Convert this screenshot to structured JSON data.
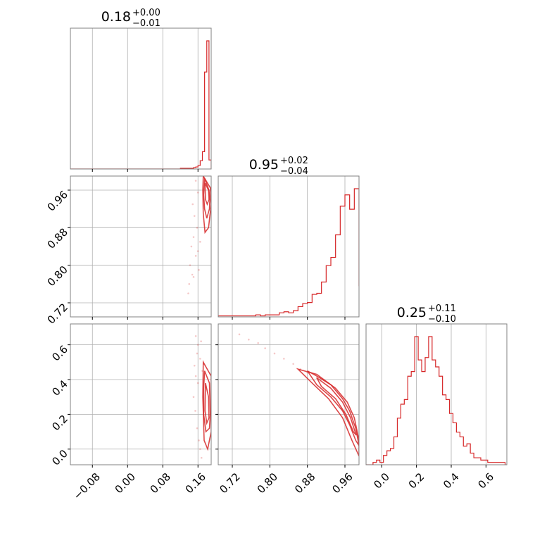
{
  "figure": {
    "background": "#ffffff",
    "line_color": "#d62728",
    "grid_color": "#b0b0b0",
    "frame_color": "#808080"
  },
  "chart_data": [
    {
      "type": "histogram",
      "panel": "diag-0",
      "title_value": "0.18",
      "title_plus": "+0.00",
      "title_minus": "−0.01",
      "xlim": [
        -0.13,
        0.19
      ],
      "x_ticks": [
        -0.08,
        0.0,
        0.08,
        0.16
      ],
      "x_tick_labels": [],
      "bins": [
        0.12,
        0.125,
        0.13,
        0.135,
        0.14,
        0.145,
        0.15,
        0.155,
        0.16,
        0.165,
        0.17,
        0.175,
        0.18,
        0.185,
        0.19
      ],
      "counts": [
        1,
        1,
        1,
        1,
        1,
        1,
        2,
        3,
        5,
        12,
        25,
        140,
        185,
        13
      ]
    },
    {
      "type": "scatter-contour",
      "panel": "q-1-0",
      "xlim": [
        -0.13,
        0.19
      ],
      "ylim": [
        0.69,
        0.99
      ],
      "x_ticks": [
        -0.08,
        0.0,
        0.08,
        0.16
      ],
      "y_ticks": [
        0.72,
        0.8,
        0.88,
        0.96
      ],
      "y_tick_labels": [
        "0.72",
        "0.80",
        "0.88",
        "0.96"
      ],
      "points": [
        [
          0.155,
          0.98
        ],
        [
          0.16,
          0.955
        ],
        [
          0.148,
          0.93
        ],
        [
          0.152,
          0.905
        ],
        [
          0.158,
          0.88
        ],
        [
          0.15,
          0.86
        ],
        [
          0.145,
          0.84
        ],
        [
          0.155,
          0.82
        ],
        [
          0.142,
          0.8
        ],
        [
          0.147,
          0.78
        ],
        [
          0.14,
          0.76
        ],
        [
          0.138,
          0.74
        ],
        [
          0.16,
          0.83
        ],
        [
          0.162,
          0.79
        ],
        [
          0.15,
          0.775
        ],
        [
          0.165,
          0.85
        ]
      ],
      "contours": [
        [
          [
            0.175,
            0.985
          ],
          [
            0.185,
            0.96
          ],
          [
            0.187,
            0.94
          ],
          [
            0.186,
            0.92
          ],
          [
            0.18,
            0.9
          ],
          [
            0.175,
            0.92
          ],
          [
            0.173,
            0.95
          ],
          [
            0.175,
            0.985
          ]
        ],
        [
          [
            0.176,
            0.975
          ],
          [
            0.184,
            0.96
          ],
          [
            0.185,
            0.94
          ],
          [
            0.181,
            0.93
          ],
          [
            0.177,
            0.94
          ],
          [
            0.176,
            0.975
          ]
        ],
        [
          [
            0.172,
            0.99
          ],
          [
            0.188,
            0.965
          ],
          [
            0.19,
            0.93
          ],
          [
            0.184,
            0.88
          ],
          [
            0.176,
            0.87
          ],
          [
            0.172,
            0.91
          ],
          [
            0.171,
            0.96
          ],
          [
            0.172,
            0.99
          ]
        ]
      ]
    },
    {
      "type": "scatter-contour",
      "panel": "q-2-0",
      "xlim": [
        -0.13,
        0.19
      ],
      "ylim": [
        -0.09,
        0.72
      ],
      "x_ticks": [
        -0.08,
        0.0,
        0.08,
        0.16
      ],
      "x_tick_labels": [
        "−0.08",
        "0.00",
        "0.08",
        "0.16"
      ],
      "y_ticks": [
        0.0,
        0.2,
        0.4,
        0.6
      ],
      "y_tick_labels": [
        "0.0",
        "0.2",
        "0.4",
        "0.6"
      ],
      "points": [
        [
          0.155,
          0.65
        ],
        [
          0.16,
          0.6
        ],
        [
          0.158,
          0.55
        ],
        [
          0.165,
          0.52
        ],
        [
          0.152,
          0.48
        ],
        [
          0.155,
          0.42
        ],
        [
          0.16,
          0.38
        ],
        [
          0.15,
          0.3
        ],
        [
          0.154,
          0.22
        ],
        [
          0.158,
          0.12
        ],
        [
          0.162,
          0.05
        ],
        [
          0.165,
          0.0
        ],
        [
          0.168,
          -0.05
        ],
        [
          0.17,
          0.45
        ],
        [
          0.167,
          0.62
        ]
      ],
      "contours": [
        [
          [
            0.175,
            0.45
          ],
          [
            0.186,
            0.38
          ],
          [
            0.188,
            0.2
          ],
          [
            0.186,
            0.12
          ],
          [
            0.178,
            0.1
          ],
          [
            0.173,
            0.2
          ],
          [
            0.173,
            0.35
          ],
          [
            0.175,
            0.45
          ]
        ],
        [
          [
            0.177,
            0.38
          ],
          [
            0.184,
            0.3
          ],
          [
            0.185,
            0.18
          ],
          [
            0.18,
            0.15
          ],
          [
            0.176,
            0.22
          ],
          [
            0.177,
            0.38
          ]
        ],
        [
          [
            0.172,
            0.5
          ],
          [
            0.19,
            0.42
          ],
          [
            0.19,
            0.1
          ],
          [
            0.182,
            0.0
          ],
          [
            0.174,
            0.05
          ],
          [
            0.171,
            0.3
          ],
          [
            0.172,
            0.5
          ]
        ]
      ]
    },
    {
      "type": "histogram",
      "panel": "diag-1",
      "title_value": "0.95",
      "title_plus": "+0.02",
      "title_minus": "−0.04",
      "xlim": [
        0.69,
        0.99
      ],
      "x_ticks": [
        0.72,
        0.8,
        0.88,
        0.96
      ],
      "x_tick_labels": [],
      "bins": [
        0.69,
        0.7,
        0.71,
        0.72,
        0.73,
        0.74,
        0.75,
        0.76,
        0.77,
        0.78,
        0.79,
        0.8,
        0.81,
        0.82,
        0.83,
        0.84,
        0.85,
        0.86,
        0.87,
        0.88,
        0.89,
        0.9,
        0.91,
        0.92,
        0.93,
        0.94,
        0.95,
        0.96,
        0.97,
        0.98,
        0.99
      ],
      "counts": [
        1,
        1,
        1,
        1,
        1,
        1,
        1,
        1,
        2,
        1,
        2,
        2,
        2,
        4,
        5,
        4,
        6,
        10,
        13,
        14,
        22,
        23,
        34,
        50,
        58,
        80,
        108,
        119,
        105,
        125,
        30
      ]
    },
    {
      "type": "scatter-contour",
      "panel": "q-2-1",
      "xlim": [
        0.69,
        0.99
      ],
      "ylim": [
        -0.09,
        0.72
      ],
      "x_ticks": [
        0.72,
        0.8,
        0.88,
        0.96
      ],
      "x_tick_labels": [
        "0.72",
        "0.80",
        "0.88",
        "0.96"
      ],
      "y_ticks": [
        0.0,
        0.2,
        0.4,
        0.6
      ],
      "points": [
        [
          0.735,
          0.66
        ],
        [
          0.755,
          0.63
        ],
        [
          0.775,
          0.61
        ],
        [
          0.79,
          0.58
        ],
        [
          0.81,
          0.55
        ],
        [
          0.83,
          0.52
        ],
        [
          0.85,
          0.49
        ],
        [
          0.865,
          0.46
        ],
        [
          0.88,
          0.44
        ],
        [
          0.9,
          0.41
        ]
      ],
      "contours": [
        [
          [
            0.88,
            0.45
          ],
          [
            0.9,
            0.42
          ],
          [
            0.93,
            0.37
          ],
          [
            0.955,
            0.29
          ],
          [
            0.97,
            0.22
          ],
          [
            0.983,
            0.12
          ],
          [
            0.99,
            0.02
          ],
          [
            0.983,
            0.05
          ],
          [
            0.97,
            0.14
          ],
          [
            0.955,
            0.22
          ],
          [
            0.93,
            0.3
          ],
          [
            0.9,
            0.37
          ],
          [
            0.88,
            0.45
          ]
        ],
        [
          [
            0.9,
            0.41
          ],
          [
            0.93,
            0.35
          ],
          [
            0.955,
            0.27
          ],
          [
            0.972,
            0.18
          ],
          [
            0.984,
            0.08
          ],
          [
            0.978,
            0.1
          ],
          [
            0.962,
            0.2
          ],
          [
            0.94,
            0.29
          ],
          [
            0.91,
            0.36
          ],
          [
            0.9,
            0.41
          ]
        ],
        [
          [
            0.86,
            0.46
          ],
          [
            0.9,
            0.43
          ],
          [
            0.94,
            0.35
          ],
          [
            0.965,
            0.27
          ],
          [
            0.98,
            0.18
          ],
          [
            0.99,
            0.05
          ],
          [
            0.99,
            -0.04
          ],
          [
            0.975,
            0.05
          ],
          [
            0.955,
            0.18
          ],
          [
            0.925,
            0.29
          ],
          [
            0.89,
            0.38
          ],
          [
            0.86,
            0.46
          ]
        ]
      ]
    },
    {
      "type": "histogram",
      "panel": "diag-2",
      "title_value": "0.25",
      "title_plus": "+0.11",
      "title_minus": "−0.10",
      "xlim": [
        -0.09,
        0.72
      ],
      "x_ticks": [
        0.0,
        0.2,
        0.4,
        0.6
      ],
      "x_tick_labels": [
        "0.0",
        "0.2",
        "0.4",
        "0.6"
      ],
      "bins": [
        -0.05,
        -0.03,
        -0.01,
        0.01,
        0.03,
        0.05,
        0.07,
        0.09,
        0.11,
        0.13,
        0.15,
        0.17,
        0.19,
        0.21,
        0.23,
        0.25,
        0.27,
        0.29,
        0.31,
        0.33,
        0.35,
        0.37,
        0.39,
        0.41,
        0.43,
        0.45,
        0.47,
        0.49,
        0.51,
        0.53,
        0.55,
        0.57,
        0.59,
        0.61,
        0.63,
        0.65,
        0.67,
        0.69,
        0.71
      ],
      "counts": [
        1,
        2,
        1,
        4,
        6,
        7,
        12,
        20,
        26,
        28,
        38,
        40,
        55,
        45,
        40,
        46,
        55,
        45,
        42,
        38,
        30,
        28,
        22,
        18,
        14,
        12,
        8,
        9,
        5,
        3,
        3,
        2,
        2,
        1,
        1,
        1,
        1,
        1
      ]
    }
  ]
}
